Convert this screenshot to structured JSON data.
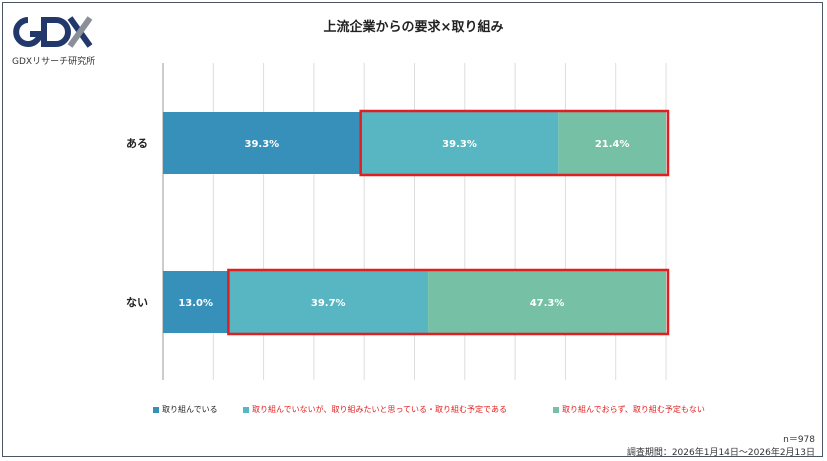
{
  "logo": {
    "mark": "GDX",
    "subtitle": "GDXリサーチ研究所"
  },
  "chart_data": {
    "type": "bar",
    "orientation": "horizontal",
    "stacked": true,
    "percent": true,
    "title": "上流企業からの要求×取り組み",
    "categories": [
      "ある",
      "ない"
    ],
    "xlim": [
      0,
      100
    ],
    "grid": true,
    "legend_position": "bottom",
    "series": [
      {
        "name": "取り組んでいる",
        "color": "#3690ba",
        "legend_text_color": "#222222",
        "values": [
          39.3,
          13.0
        ],
        "labels": [
          "39.3%",
          "13.0%"
        ]
      },
      {
        "name": "取り組んでいないが、取り組みたいと思っている・取り組む予定である",
        "color": "#57b6c2",
        "legend_text_color": "#e02020",
        "values": [
          39.3,
          39.7
        ],
        "labels": [
          "39.3%",
          "39.7%"
        ]
      },
      {
        "name": "取り組んでおらず、取り組む予定もない",
        "color": "#76c0a6",
        "legend_text_color": "#e02020",
        "values": [
          21.4,
          47.3
        ],
        "labels": [
          "21.4%",
          "47.3%"
        ]
      }
    ],
    "highlight": {
      "color": "#e02020",
      "description_series": [
        1,
        2
      ]
    }
  },
  "footnote": {
    "n": "n＝978",
    "period": "調査期間：2026年1月14日～2026年2月13日"
  }
}
